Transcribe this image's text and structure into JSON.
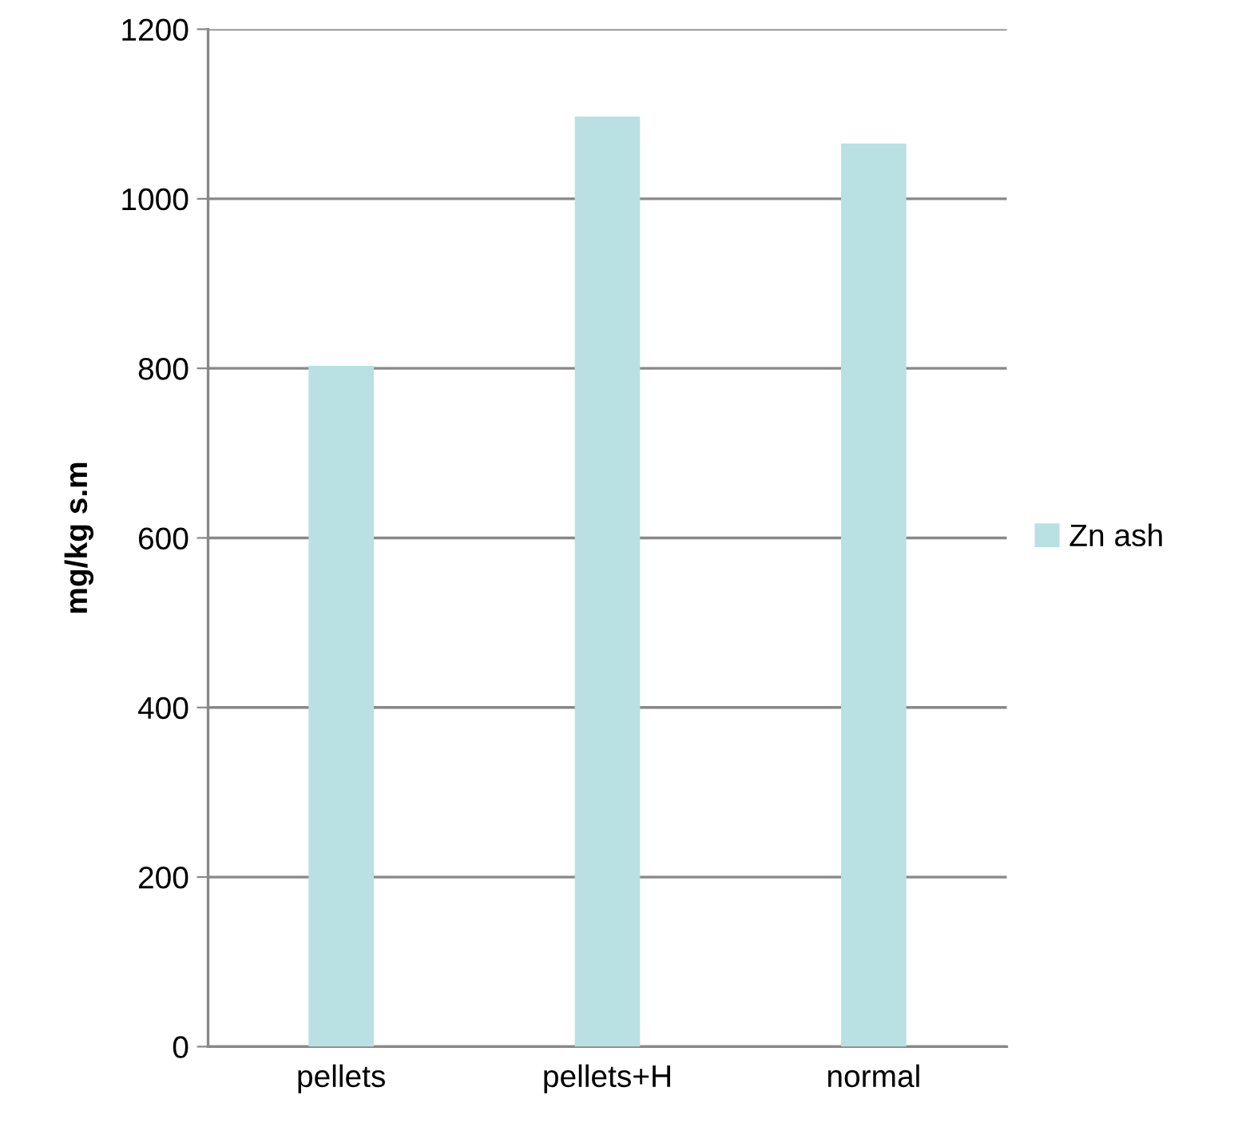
{
  "chart_data": {
    "type": "bar",
    "ylabel": "mg/kg s.m",
    "categories": [
      "pellets",
      "pellets+H",
      "normal"
    ],
    "series": [
      {
        "name": "Zn ash",
        "color": "#b9e0e3",
        "values": [
          803,
          1097,
          1065
        ]
      }
    ],
    "ylim": [
      0,
      1200
    ],
    "yticks": [
      0,
      200,
      400,
      600,
      800,
      1000,
      1200
    ],
    "grid": "y",
    "legend": "right"
  }
}
